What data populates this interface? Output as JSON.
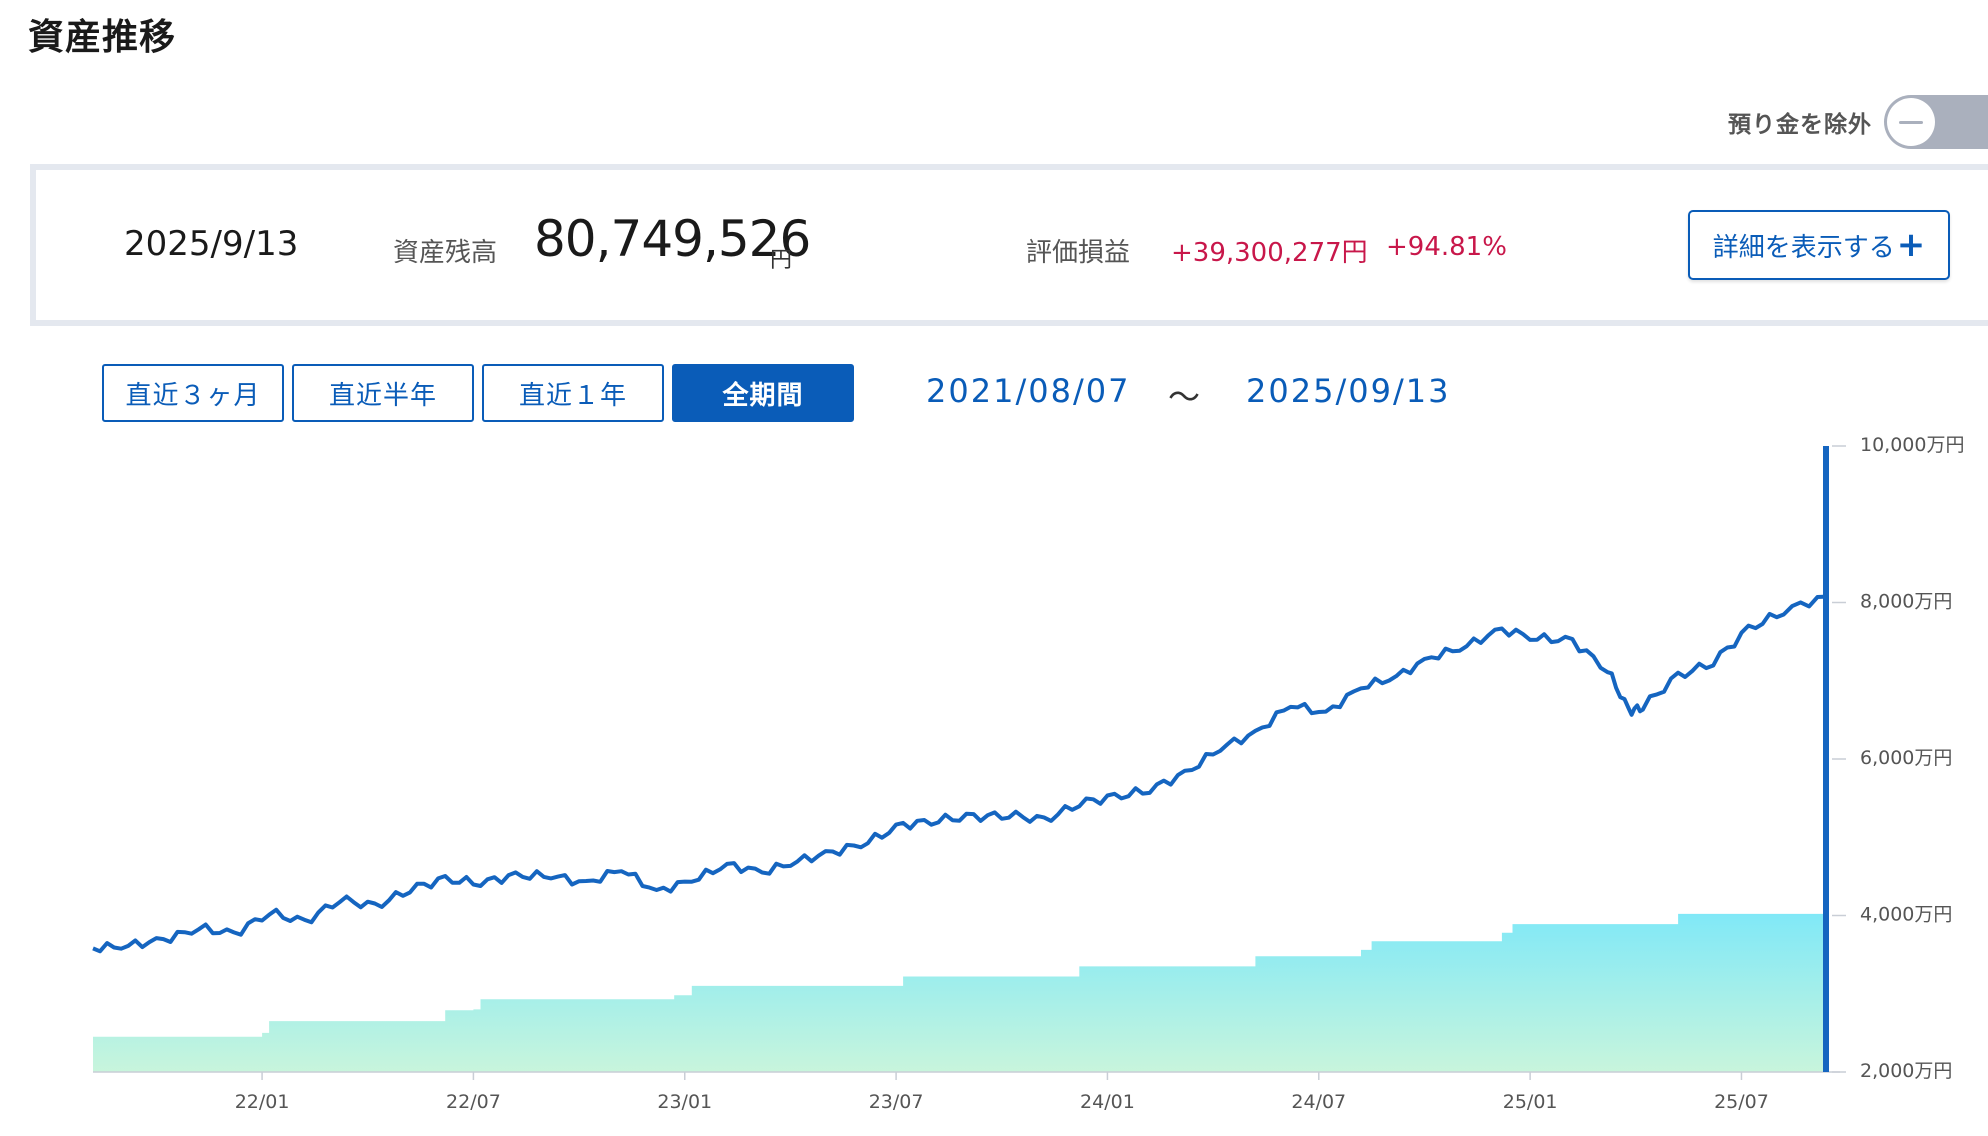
{
  "page": {
    "title": "資産推移"
  },
  "toggle": {
    "label": "預り金を除外",
    "state": "off"
  },
  "summary": {
    "date": "2025/9/13",
    "balance_label": "資産残高",
    "balance_value": "80,749,526",
    "balance_unit": "円",
    "pl_label": "評価損益",
    "pl_value": "+39,300,277円",
    "pl_rate": "+94.81%",
    "detail_button_label": "詳細を表示する",
    "detail_button_icon": "plus-icon"
  },
  "period": {
    "tabs": [
      {
        "label": "直近３ヶ月",
        "active": false
      },
      {
        "label": "直近半年",
        "active": false
      },
      {
        "label": "直近１年",
        "active": false
      },
      {
        "label": "全期間",
        "active": true
      }
    ],
    "range_start": "2021/08/07",
    "range_sep": "～",
    "range_end": "2025/09/13"
  },
  "colors": {
    "accent": "#0a5cb8",
    "line": "#1565c0",
    "gain": "#c8174a",
    "area_top": "#7ee8f8",
    "area_bottom": "#c8f5dc"
  },
  "chart_data": {
    "type": "line",
    "x_tick_labels": [
      "22/01",
      "22/07",
      "23/01",
      "23/07",
      "24/01",
      "24/07",
      "25/01",
      "25/07"
    ],
    "x_tick_months": [
      4.8,
      10.8,
      16.8,
      22.8,
      28.8,
      34.8,
      40.8,
      46.8
    ],
    "y_tick_labels": [
      "10,000万円",
      "8,000万円",
      "6,000万円",
      "4,000万円",
      "2,000万円"
    ],
    "y_tick_values": [
      10000,
      8000,
      6000,
      4000,
      2000
    ],
    "ylim": [
      2000,
      10000
    ],
    "xlim_months": [
      0,
      49.2
    ],
    "y_unit": "万円",
    "grid": false,
    "series": [
      {
        "kind": "line",
        "x_months": [
          0,
          1,
          2,
          3,
          4,
          5,
          6,
          7,
          8,
          9,
          10,
          11,
          12,
          13,
          14,
          15,
          16,
          17,
          18,
          19,
          20,
          21,
          22,
          23,
          24,
          25,
          26,
          27,
          28,
          29,
          30,
          31,
          32,
          33,
          34,
          35,
          36,
          37,
          38,
          39,
          40,
          41,
          42,
          43,
          43.6,
          44,
          45,
          46,
          47,
          48,
          49.2
        ],
        "values": [
          3580,
          3620,
          3680,
          3850,
          3750,
          4050,
          3900,
          4220,
          4100,
          4350,
          4450,
          4430,
          4500,
          4520,
          4400,
          4600,
          4300,
          4450,
          4650,
          4550,
          4700,
          4800,
          4950,
          5150,
          5230,
          5250,
          5300,
          5200,
          5450,
          5500,
          5620,
          5800,
          6150,
          6320,
          6700,
          6580,
          6920,
          7050,
          7300,
          7450,
          7650,
          7550,
          7500,
          7150,
          6600,
          6680,
          7050,
          7250,
          7650,
          7900,
          8075
        ]
      },
      {
        "kind": "area",
        "x_months": [
          0,
          4.8,
          5,
          10,
          10.8,
          11,
          16.5,
          17,
          23,
          28,
          33,
          36,
          36.3,
          40,
          40.3,
          45,
          49.2
        ],
        "values": [
          2450,
          2500,
          2650,
          2790,
          2800,
          2930,
          2980,
          3100,
          3220,
          3350,
          3480,
          3560,
          3670,
          3780,
          3890,
          4020,
          4080
        ]
      }
    ],
    "cursor_x_month": 49.2
  }
}
